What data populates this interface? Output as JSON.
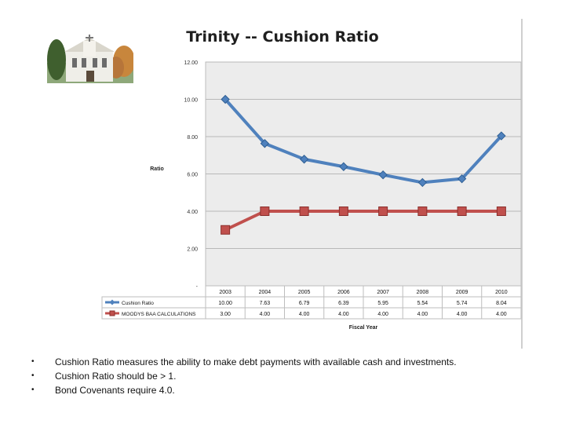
{
  "chart_data": {
    "type": "line",
    "title": "Trinity -- Cushion Ratio",
    "ylabel": "Ratio",
    "xlabel": "Fiscal Year",
    "ylim": [
      0,
      12
    ],
    "y_ticks": [
      0,
      2,
      4,
      6,
      8,
      10,
      12
    ],
    "y_tick_labels": [
      "-",
      "2.00",
      "4.00",
      "6.00",
      "8.00",
      "10.00",
      "12.00"
    ],
    "grid": true,
    "categories": [
      "2003",
      "2004",
      "2005",
      "2006",
      "2007",
      "2008",
      "2009",
      "2010"
    ],
    "series": [
      {
        "name": "Cushion Ratio",
        "color": "#4f81bd",
        "marker": "diamond",
        "values": [
          10.0,
          7.63,
          6.79,
          6.39,
          5.95,
          5.54,
          5.74,
          8.04
        ],
        "table_values": [
          "10.00",
          "7.63",
          "6.79",
          "6.39",
          "5.95",
          "5.54",
          "5.74",
          "8.04"
        ]
      },
      {
        "name": "MOODYS BAA CALCULATIONS",
        "color": "#c0504d",
        "marker": "square",
        "values": [
          3.0,
          4.0,
          4.0,
          4.0,
          4.0,
          4.0,
          4.0,
          4.0
        ],
        "table_values": [
          "3.00",
          "4.00",
          "4.00",
          "4.00",
          "4.00",
          "4.00",
          "4.00",
          "4.00"
        ]
      }
    ]
  },
  "bullets": {
    "items": [
      "Cushion Ratio measures the ability to make debt payments with available cash and investments.",
      "Cushion Ratio should be > 1.",
      "Bond Covenants require 4.0."
    ],
    "marker": "•"
  },
  "photo": {
    "icon": "church-building-photo"
  }
}
